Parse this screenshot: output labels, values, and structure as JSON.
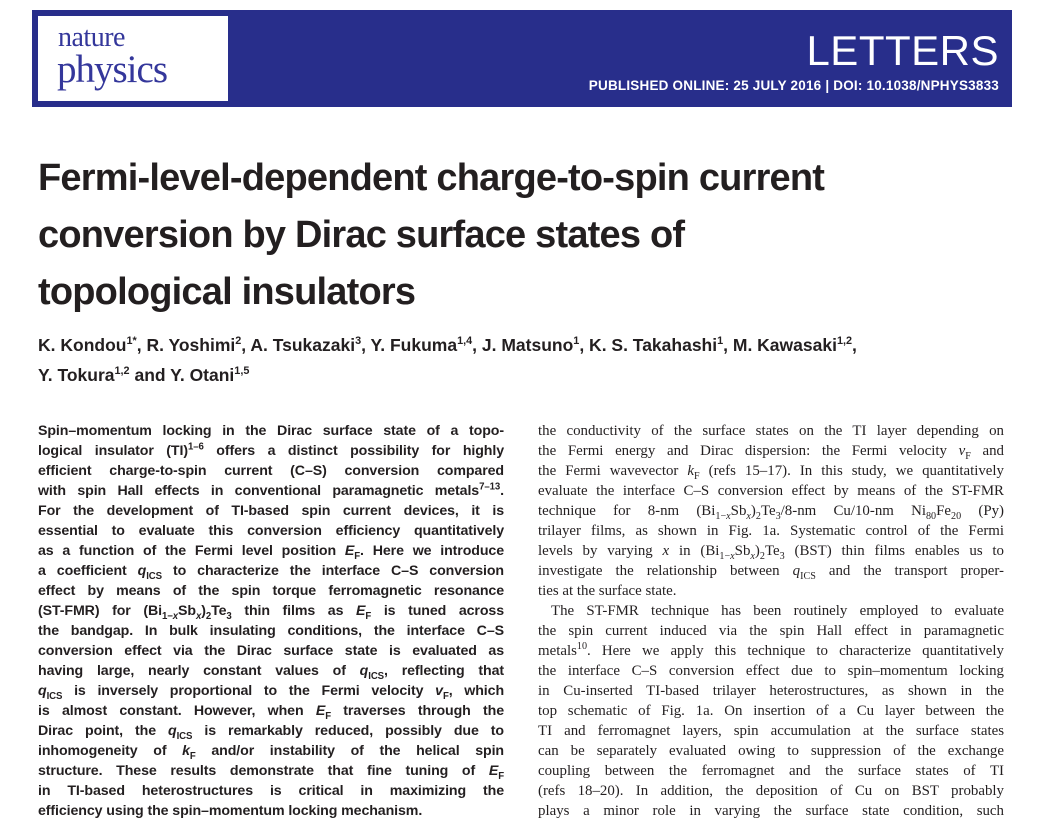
{
  "masthead": {
    "journal_name_line1": "nature",
    "journal_name_line2": "physics",
    "section_label": "LETTERS",
    "published_line": "PUBLISHED ONLINE: 25 JULY 2016 | DOI: 10.1038/NPHYS3833"
  },
  "colors": {
    "banner_background": "#282e8b",
    "logo_text": "#34379b",
    "banner_text": "#ffffff",
    "body_text": "#231f20"
  },
  "article": {
    "title_lines": [
      "Fermi-level-dependent charge-to-spin current",
      "conversion by Dirac surface states of",
      "topological insulators"
    ],
    "author_lines": [
      "K. Kondou<sup>1*</sup>, R. Yoshimi<sup>2</sup>, A. Tsukazaki<sup>3</sup>, Y. Fukuma<sup>1,4</sup>, J. Matsuno<sup>1</sup>, K. S. Takahashi<sup>1</sup>, M. Kawasaki<sup>1,2</sup>,",
      "Y. Tokura<sup>1,2</sup> and Y. Otani<sup>1,5</sup>"
    ]
  },
  "abstract": {
    "lines": [
      "Spin–momentum locking in the Dirac surface state of a topo-",
      "logical insulator (TI)<sup>1–6</sup> offers a distinct possibility for highly",
      "efficient charge-to-spin current (C–S) conversion compared",
      "with spin Hall effects in conventional paramagnetic metals<sup>7–13</sup>.",
      "For the development of TI-based spin current devices, it is",
      "essential to evaluate this conversion efficiency quantitatively",
      "as a function of the Fermi level position <i>E</i><sub>F</sub>. Here we introduce",
      "a coefficient <i>q</i><sub>ICS</sub> to characterize the interface C–S conversion",
      "effect by means of the spin torque ferromagnetic resonance",
      "(ST-FMR) for (Bi<sub>1−<i>x</i></sub>Sb<sub><i>x</i></sub>)<sub>2</sub>Te<sub>3</sub> thin films as <i>E</i><sub>F</sub> is tuned across",
      "the bandgap. In bulk insulating conditions, the interface C–S",
      "conversion effect via the Dirac surface state is evaluated as",
      "having large, nearly constant values of <i>q</i><sub>ICS</sub>, reflecting that",
      "<i>q</i><sub>ICS</sub> is inversely proportional to the Fermi velocity <i>v</i><sub>F</sub>, which",
      "is almost constant. However, when <i>E</i><sub>F</sub> traverses through the",
      "Dirac point, the <i>q</i><sub>ICS</sub> is remarkably reduced, possibly due to",
      "inhomogeneity of <i>k</i><sub>F</sub> and/or instability of the helical spin",
      "structure. These results demonstrate that fine tuning of <i>E</i><sub>F</sub>",
      "in TI-based heterostructures is critical in maximizing the",
      "efficiency using the spin–momentum locking mechanism."
    ]
  },
  "body": {
    "lines": [
      "the conductivity of the surface states on the TI layer depending on",
      "the Fermi energy and Dirac dispersion: the Fermi velocity <i>v</i><sub>F</sub> and",
      "the Fermi wavevector <i>k</i><sub>F</sub> (refs 15–17). In this study, we quantitatively",
      "evaluate the interface C–S conversion effect by means of the ST-FMR",
      "technique for 8-nm (Bi<sub>1−<i>x</i></sub>Sb<sub><i>x</i></sub>)<sub>2</sub>Te<sub>3</sub>/8-nm Cu/10-nm Ni<sub>80</sub>Fe<sub>20</sub> (Py)",
      "trilayer films, as shown in Fig. 1a. Systematic control of the Fermi",
      "levels by varying <i>x</i> in (Bi<sub>1−<i>x</i></sub>Sb<sub><i>x</i></sub>)<sub>2</sub>Te<sub>3</sub> (BST) thin films enables us to",
      "investigate the relationship between <i>q</i><sub>ICS</sub> and the transport proper-",
      "ties at the surface state.",
      "The ST-FMR technique has been routinely employed to evaluate",
      "the spin current induced via the spin Hall effect in paramagnetic",
      "metals<sup>10</sup>. Here we apply this technique to characterize quantitatively",
      "the interface C–S conversion effect due to spin–momentum locking",
      "in Cu-inserted TI-based trilayer heterostructures, as shown in the",
      "top schematic of Fig. 1a. On insertion of a Cu layer between the",
      "TI and ferromagnet layers, spin accumulation at the surface states",
      "can be separately evaluated owing to suppression of the exchange",
      "coupling between the ferromagnet and the surface states of TI",
      "(refs 18–20). In addition, the deposition of Cu on BST probably",
      "plays a minor role in varying the surface state condition, such"
    ]
  }
}
